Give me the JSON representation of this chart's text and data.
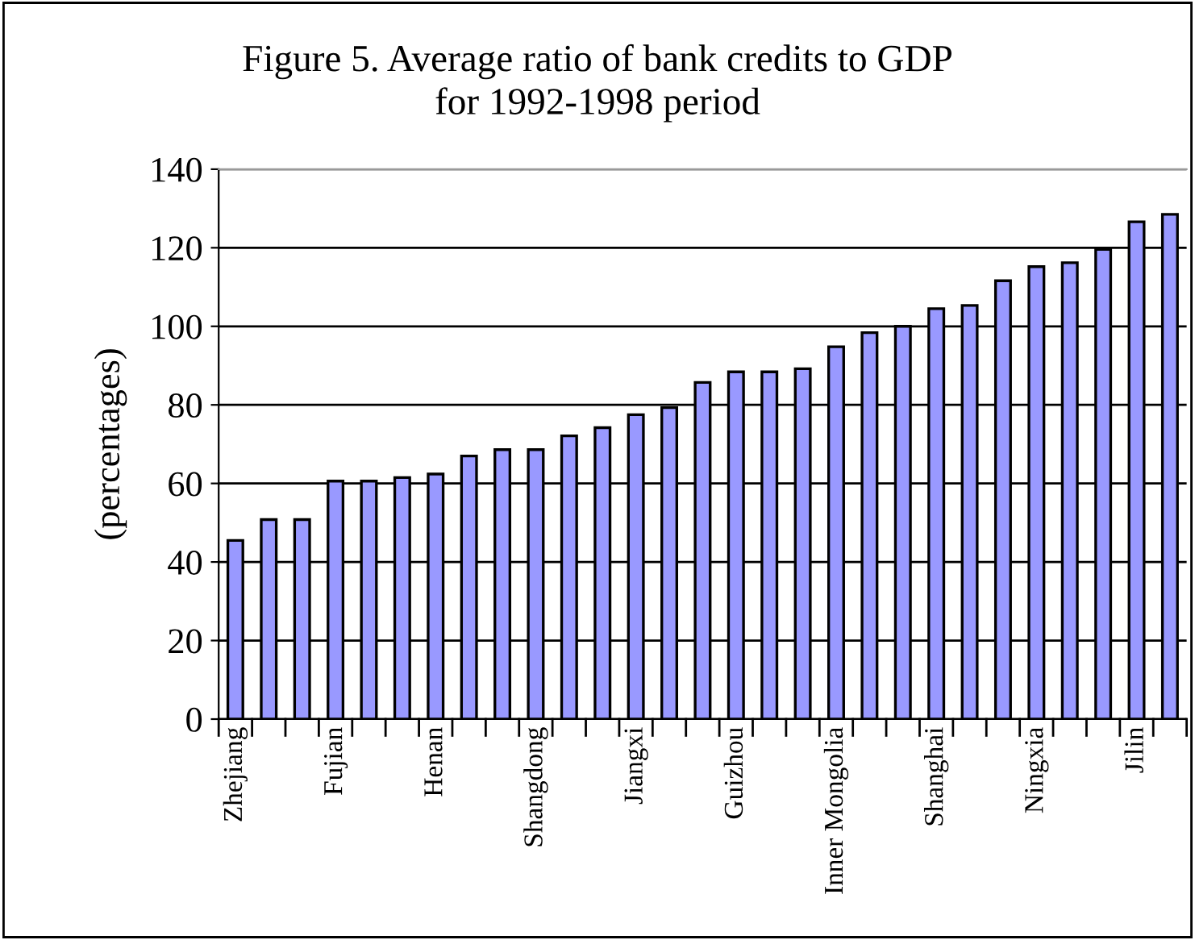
{
  "chart_data": {
    "type": "bar",
    "title": "Figure 5. Average ratio of bank credits to GDP\nfor 1992-1998 period",
    "ylabel": "(percentages)",
    "categories": [
      "Zhejiang",
      null,
      null,
      "Fujian",
      null,
      null,
      "Henan",
      null,
      null,
      "Shangdong",
      null,
      null,
      "Jiangxi",
      null,
      null,
      "Guizhou",
      null,
      null,
      "Inner Mongolia",
      null,
      null,
      "Shanghai",
      null,
      null,
      "Ningxia",
      null,
      null,
      "Jilin",
      null
    ],
    "values": [
      45.5,
      50.8,
      50.8,
      60.6,
      60.6,
      61.5,
      62.4,
      67,
      68.6,
      68.6,
      72.1,
      74.2,
      77.5,
      79.3,
      85.7,
      88.4,
      88.4,
      89.2,
      94.8,
      98.4,
      100,
      104.5,
      105.3,
      111.6,
      115.2,
      116.2,
      119.6,
      126.6,
      128.5
    ],
    "color": "#9999ff",
    "ylim": [
      0,
      140
    ],
    "yticks": [
      0,
      20,
      40,
      60,
      80,
      100,
      120,
      140
    ],
    "grid": "y"
  }
}
